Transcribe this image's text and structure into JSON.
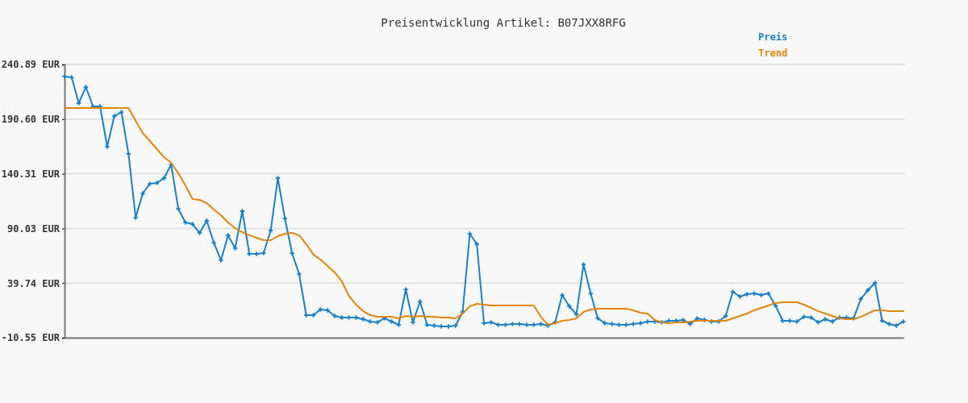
{
  "chart_data": {
    "type": "line",
    "title": "Preisentwicklung Artikel: B07JXX8RFG",
    "categories": [
      null,
      null,
      null,
      null,
      null,
      null,
      null,
      null,
      null,
      null,
      null,
      null,
      null,
      null,
      null,
      null,
      null,
      null,
      null,
      null,
      null,
      null,
      null,
      null,
      null,
      null,
      null,
      null,
      null,
      null,
      null,
      null,
      null,
      null,
      null,
      null,
      null,
      null,
      null,
      null,
      null,
      null,
      null,
      null,
      null,
      null,
      null,
      null,
      null,
      null,
      null,
      null,
      null,
      null,
      null,
      null,
      null,
      null,
      null,
      null,
      null,
      null,
      null,
      null,
      null,
      null,
      null,
      null,
      null,
      null,
      null,
      null,
      null,
      null,
      null,
      null,
      null,
      null,
      null,
      null,
      null,
      null,
      null,
      null,
      null,
      null,
      null,
      null,
      null,
      null,
      null,
      null,
      null,
      null,
      null,
      null,
      null,
      null,
      null,
      null,
      null,
      null,
      null,
      null,
      null,
      null,
      null,
      null,
      null,
      null,
      null,
      null,
      null,
      null,
      null,
      null,
      null,
      null,
      null
    ],
    "series": [
      {
        "name": "Preis",
        "color": "#1a7fc9",
        "marker": "cross",
        "values": [
          229.8,
          229.0,
          205.3,
          220.1,
          202.3,
          202.3,
          165.2,
          193.4,
          197.1,
          158.6,
          100.0,
          122.2,
          131.1,
          131.9,
          136.3,
          148.9,
          108.1,
          95.5,
          94.0,
          85.9,
          97.0,
          76.9,
          60.7,
          83.7,
          71.8,
          105.9,
          66.6,
          66.6,
          67.3,
          88.1,
          136.3,
          99.2,
          67.3,
          48.0,
          10.2,
          10.2,
          15.4,
          14.7,
          9.5,
          8.0,
          8.0,
          8.0,
          6.5,
          4.3,
          3.6,
          7.3,
          4.3,
          1.3,
          33.9,
          3.6,
          22.8,
          1.3,
          0.6,
          -0.2,
          -0.2,
          0.6,
          13.2,
          85.1,
          75.5,
          2.8,
          3.6,
          1.3,
          1.3,
          2.1,
          2.1,
          1.3,
          1.3,
          2.1,
          0.6,
          3.6,
          28.7,
          18.4,
          10.9,
          56.9,
          30.2,
          7.3,
          2.8,
          2.1,
          1.3,
          1.3,
          2.1,
          2.8,
          4.3,
          4.3,
          3.6,
          5.0,
          5.0,
          5.8,
          2.1,
          7.3,
          5.8,
          4.3,
          4.3,
          9.5,
          31.7,
          27.3,
          29.5,
          30.2,
          28.7,
          30.2,
          19.1,
          5.0,
          5.0,
          4.3,
          8.7,
          8.0,
          3.6,
          6.5,
          4.3,
          8.0,
          8.0,
          7.3,
          25.1,
          33.2,
          39.9,
          5.0,
          2.1,
          0.6,
          4.3
        ]
      },
      {
        "name": "Trend",
        "color": "#e0840c",
        "marker": "none",
        "values": [
          200.8,
          200.8,
          200.8,
          200.8,
          200.8,
          200.8,
          200.8,
          200.8,
          200.8,
          200.8,
          189.0,
          177.8,
          170.4,
          163.0,
          155.6,
          150.4,
          140.8,
          129.6,
          117.0,
          116.3,
          113.3,
          107.4,
          102.2,
          95.5,
          90.2,
          86.6,
          83.7,
          81.4,
          79.2,
          79.2,
          82.9,
          85.1,
          85.9,
          83.7,
          75.5,
          65.9,
          61.4,
          55.5,
          49.6,
          41.4,
          28.0,
          19.9,
          13.9,
          10.2,
          8.7,
          8.7,
          8.7,
          7.3,
          9.5,
          8.7,
          9.5,
          8.7,
          8.7,
          8.0,
          8.0,
          7.3,
          11.7,
          18.4,
          20.6,
          19.9,
          19.1,
          19.1,
          19.1,
          19.1,
          19.1,
          19.1,
          19.1,
          8.7,
          1.3,
          2.8,
          5.0,
          5.8,
          7.3,
          13.2,
          15.4,
          16.2,
          16.2,
          16.2,
          16.2,
          16.2,
          14.7,
          12.4,
          11.7,
          5.8,
          3.6,
          2.8,
          3.6,
          3.6,
          4.3,
          5.0,
          5.0,
          5.0,
          5.0,
          5.0,
          7.3,
          9.5,
          11.7,
          14.7,
          16.9,
          19.1,
          21.3,
          22.1,
          22.1,
          22.1,
          19.9,
          16.9,
          13.9,
          11.7,
          9.5,
          7.3,
          6.5,
          6.5,
          8.7,
          11.7,
          14.7,
          14.7,
          13.9,
          13.9,
          13.9
        ]
      }
    ],
    "ylim": [
      -10.55,
      240.89
    ],
    "yticks": [
      {
        "value": -10.55,
        "label": "-10.55 EUR"
      },
      {
        "value": 39.74,
        "label": "39.74 EUR"
      },
      {
        "value": 90.03,
        "label": "90.03 EUR"
      },
      {
        "value": 140.31,
        "label": "140.31 EUR"
      },
      {
        "value": 190.6,
        "label": "190.60 EUR"
      },
      {
        "value": 240.89,
        "label": "240.89 EUR"
      }
    ],
    "grid": "y",
    "legend": "top right",
    "line_style": "solid",
    "tick_labels": "y"
  }
}
